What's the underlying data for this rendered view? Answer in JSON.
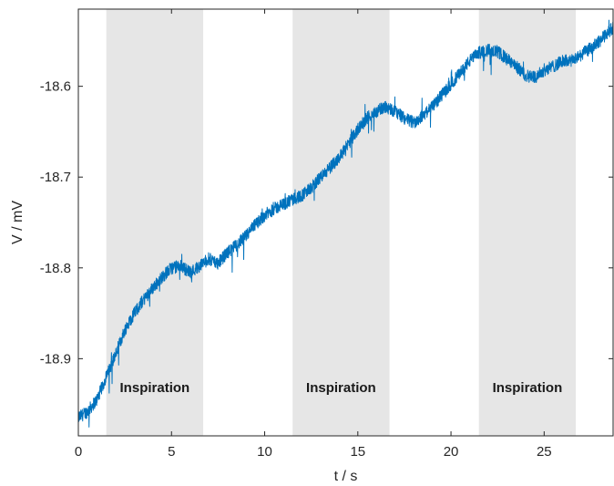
{
  "chart_data": {
    "type": "line",
    "title": "",
    "xlabel": "t / s",
    "ylabel": "V / mV",
    "xlim": [
      0,
      28.7
    ],
    "ylim": [
      -18.985,
      -18.515
    ],
    "xticks": [
      0,
      5,
      10,
      15,
      20,
      25
    ],
    "xtick_labels": [
      "0",
      "5",
      "10",
      "15",
      "20",
      "25"
    ],
    "yticks": [
      -18.9,
      -18.8,
      -18.7,
      -18.6
    ],
    "ytick_labels": [
      "-18.9",
      "-18.8",
      "-18.7",
      "-18.6"
    ],
    "grid": false,
    "bands": [
      {
        "x_start": 1.5,
        "x_end": 6.7,
        "label": "Inspiration",
        "color": "#e6e6e6"
      },
      {
        "x_start": 11.5,
        "x_end": 16.7,
        "label": "Inspiration",
        "color": "#e6e6e6"
      },
      {
        "x_start": 21.5,
        "x_end": 26.7,
        "label": "Inspiration",
        "color": "#e6e6e6"
      }
    ],
    "series": [
      {
        "color": "#0072bd",
        "noise_amplitude": 0.007,
        "x": [
          0,
          0.5,
          1,
          1.5,
          2,
          2.5,
          3,
          3.5,
          4,
          4.5,
          5,
          5.5,
          6,
          6.5,
          7,
          7.5,
          8,
          8.5,
          9,
          9.5,
          10,
          10.5,
          11,
          11.5,
          12,
          12.5,
          13,
          13.5,
          14,
          14.5,
          15,
          15.5,
          16,
          16.5,
          17,
          17.5,
          18,
          18.5,
          19,
          19.5,
          20,
          20.5,
          21,
          21.5,
          22,
          22.5,
          23,
          23.5,
          24,
          24.5,
          25,
          25.5,
          26,
          26.5,
          27,
          27.5,
          28,
          28.7
        ],
        "y": [
          -18.965,
          -18.958,
          -18.945,
          -18.92,
          -18.895,
          -18.868,
          -18.85,
          -18.835,
          -18.822,
          -18.81,
          -18.8,
          -18.798,
          -18.805,
          -18.798,
          -18.79,
          -18.795,
          -18.783,
          -18.775,
          -18.765,
          -18.752,
          -18.742,
          -18.735,
          -18.73,
          -18.725,
          -18.72,
          -18.712,
          -18.7,
          -18.69,
          -18.678,
          -18.663,
          -18.648,
          -18.635,
          -18.628,
          -18.622,
          -18.628,
          -18.635,
          -18.64,
          -18.632,
          -18.622,
          -18.61,
          -18.598,
          -18.585,
          -18.572,
          -18.563,
          -18.56,
          -18.562,
          -18.57,
          -18.578,
          -18.588,
          -18.59,
          -18.582,
          -18.578,
          -18.572,
          -18.572,
          -18.565,
          -18.558,
          -18.55,
          -18.535
        ]
      }
    ]
  }
}
